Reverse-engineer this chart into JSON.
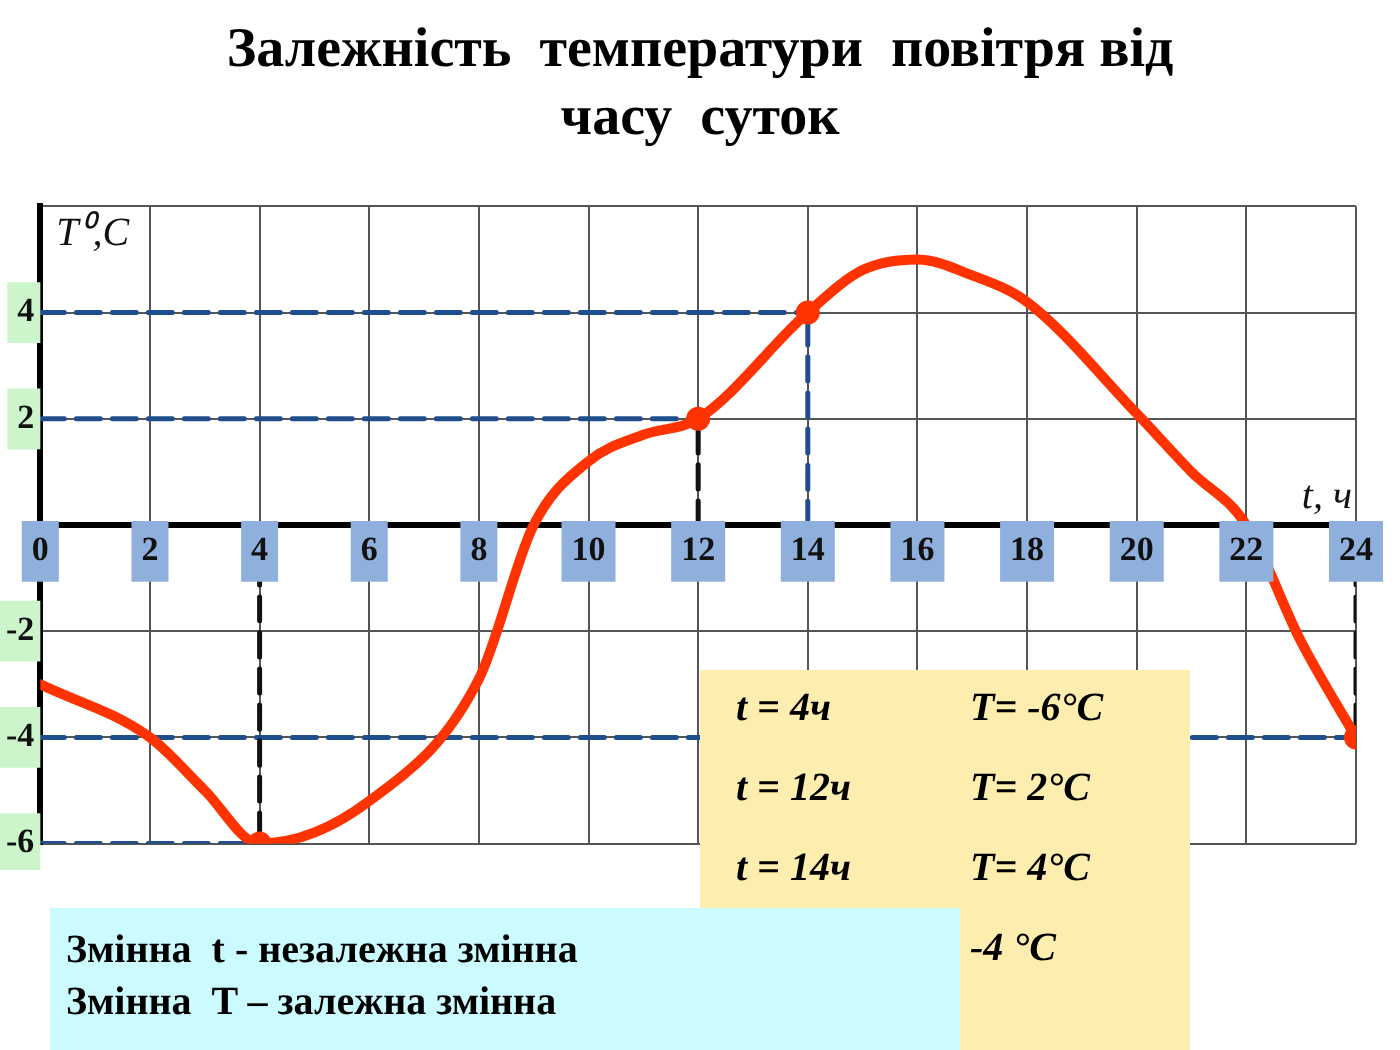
{
  "chart_data": {
    "type": "line",
    "title": "Залежність  температури  повітря від  часу  суток",
    "xlabel": "t, ч",
    "ylabel": "T⁰,C",
    "xlim": [
      0,
      24
    ],
    "xticks": [
      0,
      2,
      4,
      6,
      8,
      10,
      12,
      14,
      16,
      18,
      20,
      22,
      24
    ],
    "ylim": [
      -6,
      6
    ],
    "yticks": [
      -6,
      -4,
      -2,
      {
        "value": 0,
        "label": null
      },
      2,
      4,
      {
        "value": 6,
        "label": null
      }
    ],
    "grid": true,
    "legend": false,
    "marker": "none",
    "line_style": "solid",
    "series": [
      {
        "color": "#ff3300",
        "x": [
          0,
          2,
          3,
          4,
          6,
          8,
          9,
          10,
          11,
          12,
          14,
          15,
          16,
          17,
          18,
          20,
          21,
          22,
          23,
          24
        ],
        "values": [
          -3,
          -4,
          -5,
          -6,
          -5.2,
          -2.9,
          0,
          1.2,
          1.7,
          2,
          4,
          4.8,
          5,
          4.7,
          4.2,
          2.1,
          1,
          0,
          -2.2,
          -4
        ]
      },
      {
        "type": "line",
        "color": "#1f4e8c",
        "line_style": "dashed",
        "x": [
          0,
          4
        ],
        "values": [
          -6,
          -6
        ]
      },
      {
        "type": "line",
        "color": "#111111",
        "line_style": "dashed",
        "x": [
          4,
          4
        ],
        "values": [
          0,
          -6
        ]
      },
      {
        "type": "line",
        "color": "#1f4e8c",
        "line_style": "dashed",
        "x": [
          0,
          12
        ],
        "values": [
          2,
          2
        ]
      },
      {
        "type": "line",
        "color": "#111111",
        "line_style": "dashed",
        "x": [
          12,
          12
        ],
        "values": [
          0,
          2
        ]
      },
      {
        "type": "line",
        "color": "#1f4e8c",
        "line_style": "dashed",
        "x": [
          0,
          14
        ],
        "values": [
          4,
          4
        ]
      },
      {
        "type": "line",
        "color": "#1f4e8c",
        "line_style": "dashed",
        "x": [
          14,
          14
        ],
        "values": [
          0,
          4
        ]
      },
      {
        "type": "line",
        "color": "#1f4e8c",
        "line_style": "dashed",
        "x": [
          0,
          24
        ],
        "values": [
          -4,
          -4
        ]
      },
      {
        "type": "line",
        "color": "#111111",
        "line_style": "dashed",
        "x": [
          24,
          24
        ],
        "values": [
          0,
          -4
        ]
      },
      {
        "type": "scatter",
        "color": "#ff3300",
        "marker": "circle",
        "x": [
          4,
          12,
          14,
          24
        ],
        "values": [
          -6,
          2,
          4,
          -4
        ]
      }
    ],
    "annotations": [
      "t = 4ч",
      "T= -6°C",
      "t = 12ч",
      "T= 2°C",
      "t = 14ч",
      "T= 4°C",
      "-4 °C",
      "Змінна  t - незалежна змінна",
      "Змінна  T – залежна змінна"
    ]
  }
}
